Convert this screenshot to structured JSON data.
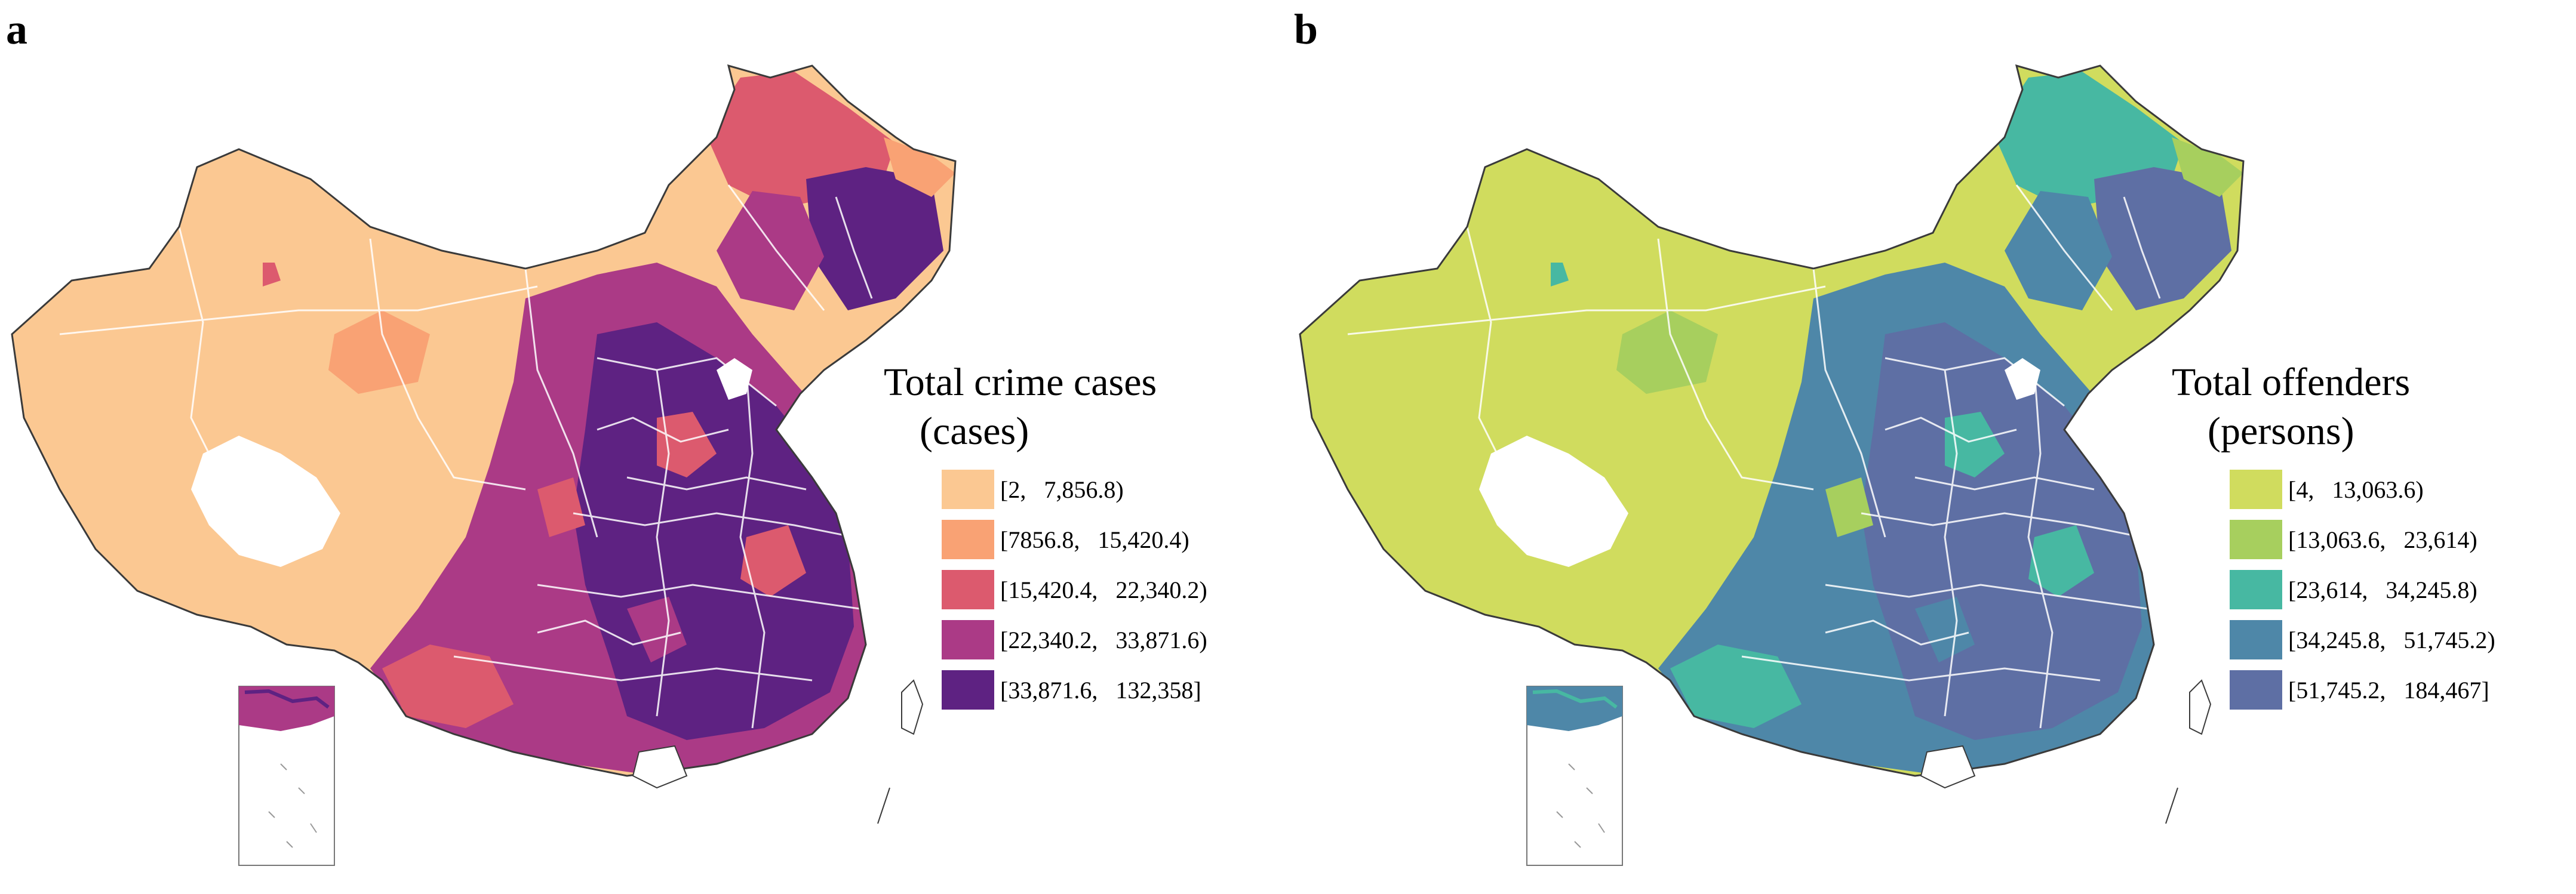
{
  "panels": [
    {
      "letter": "a",
      "legend_title": "Total crime cases",
      "legend_unit": "(cases)",
      "classes": [
        {
          "label": "[2,   7,856.8)",
          "color": "#fbc892"
        },
        {
          "label": "[7856.8,   15,420.4)",
          "color": "#f9a274"
        },
        {
          "label": "[15,420.4,   22,340.2)",
          "color": "#dc5a6e"
        },
        {
          "label": "[22,340.2,   33,871.6)",
          "color": "#ab3a86"
        },
        {
          "label": "[33,871.6,   132,358]",
          "color": "#5e2282"
        }
      ]
    },
    {
      "letter": "b",
      "legend_title": "Total offenders",
      "legend_unit": "(persons)",
      "classes": [
        {
          "label": "[4,   13,063.6)",
          "color": "#d0dc5e"
        },
        {
          "label": "[13,063.6,   23,614)",
          "color": "#a7cf5e"
        },
        {
          "label": "[23,614,   34,245.8)",
          "color": "#47b8a2"
        },
        {
          "label": "[34,245.8,   51,745.2)",
          "color": "#4e87a8"
        },
        {
          "label": "[51,745.2,   184,467]",
          "color": "#5e6fa4"
        }
      ]
    }
  ]
}
